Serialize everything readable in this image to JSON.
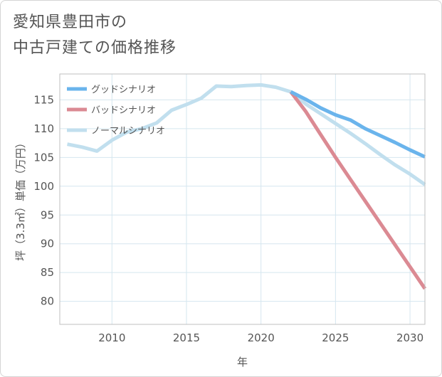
{
  "chart_data": {
    "type": "line",
    "title_lines": [
      "愛知県豊田市の",
      "中古戸建ての価格推移"
    ],
    "xlabel": "年",
    "ylabel": "坪（3.3㎡）単価（万円）",
    "xlim": [
      2006.5,
      2031
    ],
    "ylim": [
      76,
      119.5
    ],
    "x_ticks": [
      2010,
      2015,
      2020,
      2025,
      2030
    ],
    "y_ticks": [
      80,
      85,
      90,
      95,
      100,
      105,
      110,
      115
    ],
    "legend_position": "top-left",
    "series": [
      {
        "name": "グッドシナリオ",
        "color": "#6ab4ec",
        "x": [
          2022,
          2023,
          2024,
          2025,
          2026,
          2027,
          2028,
          2029,
          2030,
          2031
        ],
        "values": [
          116.4,
          115.1,
          113.6,
          112.4,
          111.5,
          110.0,
          108.8,
          107.6,
          106.3,
          105.1
        ]
      },
      {
        "name": "バッドシナリオ",
        "color": "#db8a93",
        "x": [
          2022,
          2023,
          2024,
          2025,
          2026,
          2027,
          2028,
          2029,
          2030,
          2031
        ],
        "values": [
          116.4,
          113.0,
          109.0,
          105.0,
          101.2,
          97.4,
          93.6,
          89.8,
          86.0,
          82.2
        ]
      },
      {
        "name": "ノーマルシナリオ",
        "color": "#c1dfee",
        "x": [
          2007,
          2008,
          2009,
          2010,
          2011,
          2012,
          2013,
          2014,
          2015,
          2016,
          2017,
          2018,
          2019,
          2020,
          2021,
          2022,
          2023,
          2024,
          2025,
          2026,
          2027,
          2028,
          2029,
          2030,
          2031
        ],
        "values": [
          107.3,
          106.8,
          106.1,
          108.0,
          109.4,
          110.0,
          111.0,
          113.2,
          114.2,
          115.3,
          117.4,
          117.3,
          117.5,
          117.6,
          117.2,
          116.4,
          114.3,
          112.6,
          110.9,
          109.2,
          107.4,
          105.5,
          103.7,
          102.1,
          100.3
        ]
      }
    ]
  }
}
